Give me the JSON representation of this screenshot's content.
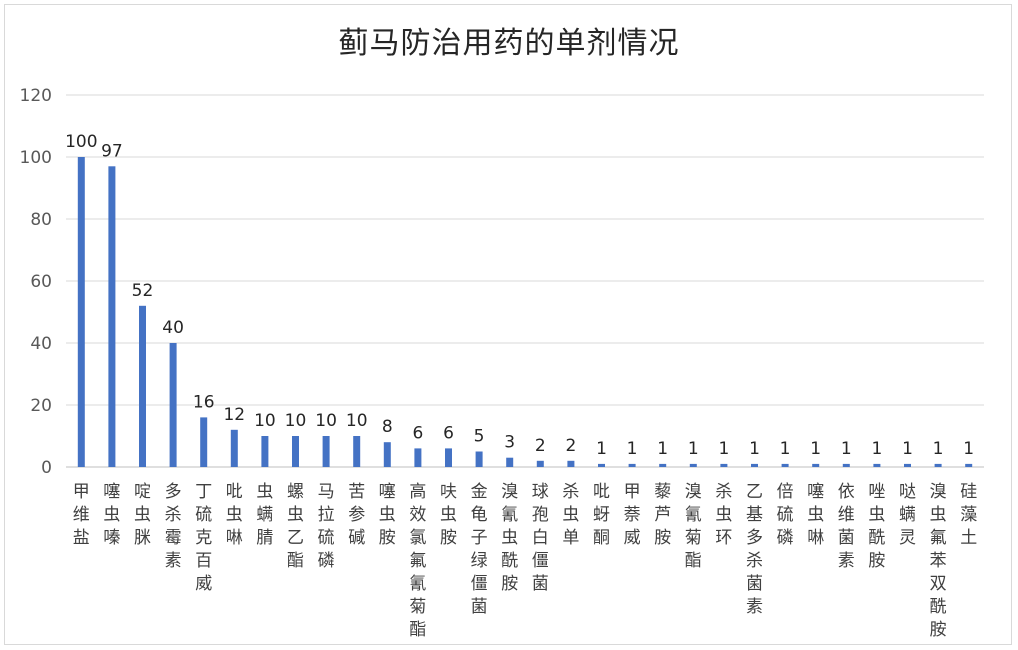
{
  "chart_data": {
    "type": "bar",
    "title": "蓟马防治用药的单剂情况",
    "xlabel": "",
    "ylabel": "",
    "ylim": [
      0,
      120
    ],
    "yticks": [
      0,
      20,
      40,
      60,
      80,
      100,
      120
    ],
    "grid": true,
    "legend": "none",
    "bar_color": "#4472c4",
    "categories": [
      "甲维盐",
      "噻虫嗪",
      "啶虫脒",
      "多杀霉素",
      "丁硫克百威",
      "吡虫啉",
      "虫螨腈",
      "螺虫乙酯",
      "马拉硫磷",
      "苦参碱",
      "噻虫胺",
      "高效氯氟氰菊酯",
      "呋虫胺",
      "金龟子绿僵菌",
      "溴氰虫酰胺",
      "球孢白僵菌",
      "杀虫单",
      "吡蚜酮",
      "甲萘威",
      "藜芦胺",
      "溴氰菊酯",
      "杀虫环",
      "乙基多杀菌素",
      "倍硫磷",
      "噻虫啉",
      "依维菌素",
      "唑虫酰胺",
      "哒螨灵",
      "溴虫氟苯双酰胺",
      "硅藻土"
    ],
    "values": [
      100,
      97,
      52,
      40,
      16,
      12,
      10,
      10,
      10,
      10,
      8,
      6,
      6,
      5,
      3,
      2,
      2,
      1,
      1,
      1,
      1,
      1,
      1,
      1,
      1,
      1,
      1,
      1,
      1,
      1
    ]
  }
}
